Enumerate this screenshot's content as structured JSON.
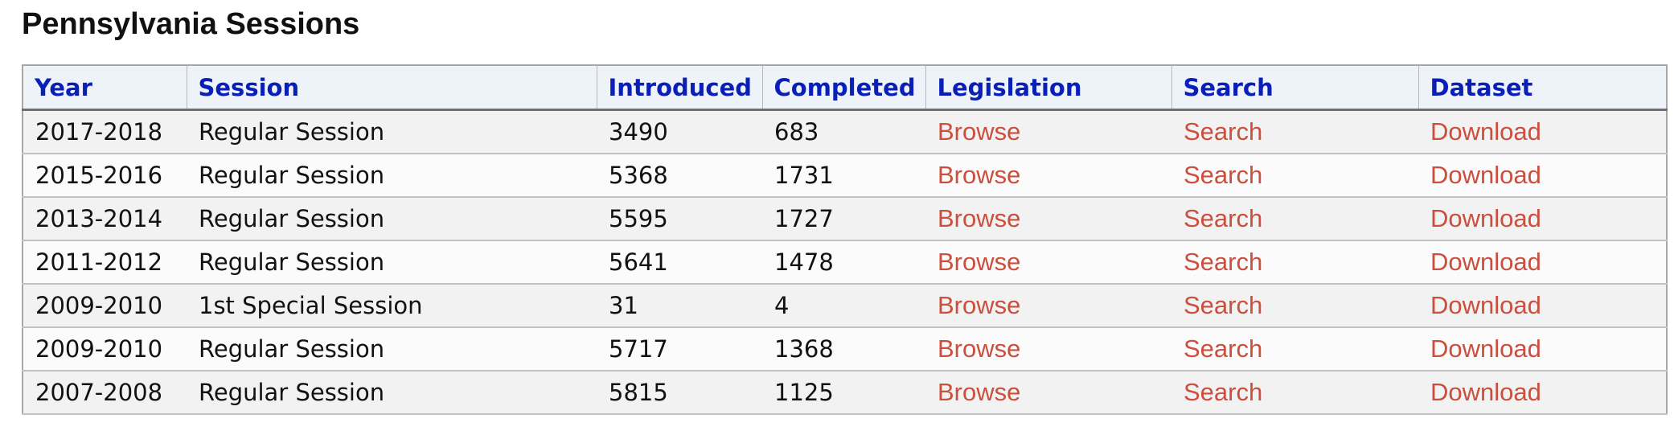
{
  "page": {
    "title": "Pennsylvania Sessions"
  },
  "table": {
    "headers": [
      "Year",
      "Session",
      "Introduced",
      "Completed",
      "Legislation",
      "Search",
      "Dataset"
    ],
    "rows": [
      {
        "year": "2017-2018",
        "session": "Regular Session",
        "introduced": "3490",
        "completed": "683",
        "legislation": "Browse",
        "search": "Search",
        "dataset": "Download"
      },
      {
        "year": "2015-2016",
        "session": "Regular Session",
        "introduced": "5368",
        "completed": "1731",
        "legislation": "Browse",
        "search": "Search",
        "dataset": "Download"
      },
      {
        "year": "2013-2014",
        "session": "Regular Session",
        "introduced": "5595",
        "completed": "1727",
        "legislation": "Browse",
        "search": "Search",
        "dataset": "Download"
      },
      {
        "year": "2011-2012",
        "session": "Regular Session",
        "introduced": "5641",
        "completed": "1478",
        "legislation": "Browse",
        "search": "Search",
        "dataset": "Download"
      },
      {
        "year": "2009-2010",
        "session": "1st Special Session",
        "introduced": "31",
        "completed": "4",
        "legislation": "Browse",
        "search": "Search",
        "dataset": "Download"
      },
      {
        "year": "2009-2010",
        "session": "Regular Session",
        "introduced": "5717",
        "completed": "1368",
        "legislation": "Browse",
        "search": "Search",
        "dataset": "Download"
      },
      {
        "year": "2007-2008",
        "session": "Regular Session",
        "introduced": "5815",
        "completed": "1125",
        "legislation": "Browse",
        "search": "Search",
        "dataset": "Download"
      }
    ]
  },
  "colors": {
    "header_text": "#0a1fb8",
    "header_background": "#eef3fa",
    "link": "#cc4e3d",
    "row_odd": "#f2f2f2",
    "row_even": "#fbfbfb"
  }
}
